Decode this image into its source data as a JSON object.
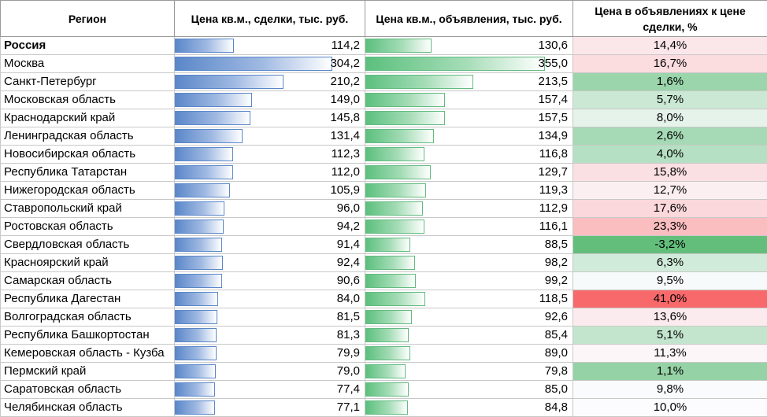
{
  "headers": {
    "region": "Регион",
    "deal": "Цена кв.м., сделки, тыс. руб.",
    "ads": "Цена кв.м., объявления, тыс. руб.",
    "ratio": "Цена в объявлениях к цене сделки, %"
  },
  "colors": {
    "deal_bar": "#5b87c9",
    "ads_bar": "#5cc07e",
    "ratio_high": "#f8696b",
    "ratio_mid": "#fcfcff",
    "ratio_low": "#63be7b"
  },
  "scale": {
    "deal_max": 304.2,
    "ads_max": 355.0,
    "ratio_min": -3.2,
    "ratio_mid": 10.0,
    "ratio_max": 41.0
  },
  "rows": [
    {
      "region": "Россия",
      "deal": "114,2",
      "deal_num": 114.2,
      "ads": "130,6",
      "ads_num": 130.6,
      "ratio": "14,4%",
      "ratio_num": 14.4,
      "bold": true
    },
    {
      "region": "Москва",
      "deal": "304,2",
      "deal_num": 304.2,
      "ads": "355,0",
      "ads_num": 355.0,
      "ratio": "16,7%",
      "ratio_num": 16.7
    },
    {
      "region": "Санкт-Петербург",
      "deal": "210,2",
      "deal_num": 210.2,
      "ads": "213,5",
      "ads_num": 213.5,
      "ratio": "1,6%",
      "ratio_num": 1.6
    },
    {
      "region": "Московская область",
      "deal": "149,0",
      "deal_num": 149.0,
      "ads": "157,4",
      "ads_num": 157.4,
      "ratio": "5,7%",
      "ratio_num": 5.7
    },
    {
      "region": "Краснодарский край",
      "deal": "145,8",
      "deal_num": 145.8,
      "ads": "157,5",
      "ads_num": 157.5,
      "ratio": "8,0%",
      "ratio_num": 8.0
    },
    {
      "region": "Ленинградская область",
      "deal": "131,4",
      "deal_num": 131.4,
      "ads": "134,9",
      "ads_num": 134.9,
      "ratio": "2,6%",
      "ratio_num": 2.6
    },
    {
      "region": "Новосибирская область",
      "deal": "112,3",
      "deal_num": 112.3,
      "ads": "116,8",
      "ads_num": 116.8,
      "ratio": "4,0%",
      "ratio_num": 4.0
    },
    {
      "region": "Республика Татарстан",
      "deal": "112,0",
      "deal_num": 112.0,
      "ads": "129,7",
      "ads_num": 129.7,
      "ratio": "15,8%",
      "ratio_num": 15.8
    },
    {
      "region": "Нижегородская область",
      "deal": "105,9",
      "deal_num": 105.9,
      "ads": "119,3",
      "ads_num": 119.3,
      "ratio": "12,7%",
      "ratio_num": 12.7
    },
    {
      "region": "Ставропольский край",
      "deal": "96,0",
      "deal_num": 96.0,
      "ads": "112,9",
      "ads_num": 112.9,
      "ratio": "17,6%",
      "ratio_num": 17.6
    },
    {
      "region": "Ростовская область",
      "deal": "94,2",
      "deal_num": 94.2,
      "ads": "116,1",
      "ads_num": 116.1,
      "ratio": "23,3%",
      "ratio_num": 23.3
    },
    {
      "region": "Свердловская область",
      "deal": "91,4",
      "deal_num": 91.4,
      "ads": "88,5",
      "ads_num": 88.5,
      "ratio": "-3,2%",
      "ratio_num": -3.2
    },
    {
      "region": "Красноярский край",
      "deal": "92,4",
      "deal_num": 92.4,
      "ads": "98,2",
      "ads_num": 98.2,
      "ratio": "6,3%",
      "ratio_num": 6.3
    },
    {
      "region": "Самарская область",
      "deal": "90,6",
      "deal_num": 90.6,
      "ads": "99,2",
      "ads_num": 99.2,
      "ratio": "9,5%",
      "ratio_num": 9.5
    },
    {
      "region": "Республика Дагестан",
      "deal": "84,0",
      "deal_num": 84.0,
      "ads": "118,5",
      "ads_num": 118.5,
      "ratio": "41,0%",
      "ratio_num": 41.0
    },
    {
      "region": "Волгоградская область",
      "deal": "81,5",
      "deal_num": 81.5,
      "ads": "92,6",
      "ads_num": 92.6,
      "ratio": "13,6%",
      "ratio_num": 13.6
    },
    {
      "region": "Республика Башкортостан",
      "deal": "81,3",
      "deal_num": 81.3,
      "ads": "85,4",
      "ads_num": 85.4,
      "ratio": "5,1%",
      "ratio_num": 5.1
    },
    {
      "region": "Кемеровская область - Кузба",
      "deal": "79,9",
      "deal_num": 79.9,
      "ads": "89,0",
      "ads_num": 89.0,
      "ratio": "11,3%",
      "ratio_num": 11.3
    },
    {
      "region": "Пермский край",
      "deal": "79,0",
      "deal_num": 79.0,
      "ads": "79,8",
      "ads_num": 79.8,
      "ratio": "1,1%",
      "ratio_num": 1.1
    },
    {
      "region": "Саратовская область",
      "deal": "77,4",
      "deal_num": 77.4,
      "ads": "85,0",
      "ads_num": 85.0,
      "ratio": "9,8%",
      "ratio_num": 9.8
    },
    {
      "region": "Челябинская область",
      "deal": "77,1",
      "deal_num": 77.1,
      "ads": "84,8",
      "ads_num": 84.8,
      "ratio": "10,0%",
      "ratio_num": 10.0
    }
  ]
}
